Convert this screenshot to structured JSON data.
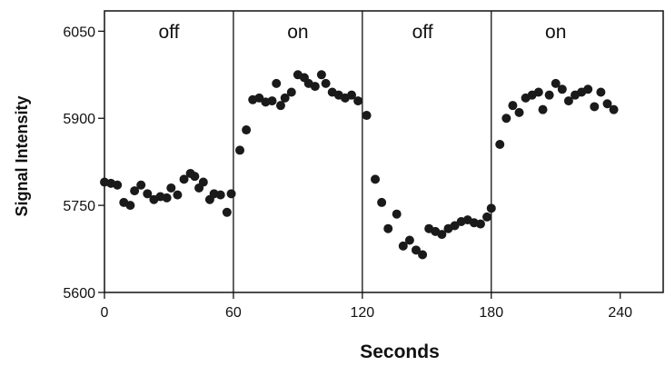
{
  "chart_data": {
    "type": "scatter",
    "xlabel": "Seconds",
    "ylabel": "Signal Intensity",
    "xlim": [
      0,
      260
    ],
    "ylim": [
      5600,
      6085
    ],
    "x_ticks": [
      0,
      60,
      120,
      180,
      240
    ],
    "y_ticks": [
      5600,
      5750,
      5900,
      6050
    ],
    "grid": false,
    "dividers": [
      60,
      120,
      180
    ],
    "phases": [
      {
        "label": "off",
        "x": 30
      },
      {
        "label": "on",
        "x": 90
      },
      {
        "label": "off",
        "x": 148
      },
      {
        "label": "on",
        "x": 210
      }
    ],
    "marker_color": "#1a1a1a",
    "series": [
      {
        "points": [
          [
            0,
            5790
          ],
          [
            3,
            5788
          ],
          [
            6,
            5785
          ],
          [
            9,
            5755
          ],
          [
            12,
            5750
          ],
          [
            14,
            5775
          ],
          [
            17,
            5785
          ],
          [
            20,
            5770
          ],
          [
            23,
            5760
          ],
          [
            26,
            5765
          ],
          [
            29,
            5763
          ],
          [
            31,
            5780
          ],
          [
            34,
            5768
          ],
          [
            37,
            5795
          ],
          [
            40,
            5805
          ],
          [
            42,
            5800
          ],
          [
            44,
            5780
          ],
          [
            46,
            5790
          ],
          [
            49,
            5760
          ],
          [
            51,
            5770
          ],
          [
            54,
            5768
          ],
          [
            57,
            5738
          ],
          [
            59,
            5770
          ],
          [
            63,
            5845
          ],
          [
            66,
            5880
          ],
          [
            69,
            5932
          ],
          [
            72,
            5935
          ],
          [
            75,
            5928
          ],
          [
            78,
            5930
          ],
          [
            80,
            5960
          ],
          [
            82,
            5922
          ],
          [
            84,
            5935
          ],
          [
            87,
            5945
          ],
          [
            90,
            5975
          ],
          [
            93,
            5970
          ],
          [
            95,
            5960
          ],
          [
            98,
            5955
          ],
          [
            101,
            5975
          ],
          [
            103,
            5960
          ],
          [
            106,
            5945
          ],
          [
            109,
            5940
          ],
          [
            112,
            5935
          ],
          [
            115,
            5940
          ],
          [
            118,
            5930
          ],
          [
            122,
            5905
          ],
          [
            126,
            5795
          ],
          [
            129,
            5755
          ],
          [
            132,
            5710
          ],
          [
            136,
            5735
          ],
          [
            139,
            5680
          ],
          [
            142,
            5690
          ],
          [
            145,
            5673
          ],
          [
            148,
            5665
          ],
          [
            151,
            5710
          ],
          [
            154,
            5705
          ],
          [
            157,
            5700
          ],
          [
            160,
            5710
          ],
          [
            163,
            5715
          ],
          [
            166,
            5722
          ],
          [
            169,
            5725
          ],
          [
            172,
            5720
          ],
          [
            175,
            5718
          ],
          [
            178,
            5730
          ],
          [
            180,
            5745
          ],
          [
            184,
            5855
          ],
          [
            187,
            5900
          ],
          [
            190,
            5922
          ],
          [
            193,
            5910
          ],
          [
            196,
            5935
          ],
          [
            199,
            5940
          ],
          [
            202,
            5945
          ],
          [
            204,
            5915
          ],
          [
            207,
            5940
          ],
          [
            210,
            5960
          ],
          [
            213,
            5950
          ],
          [
            216,
            5930
          ],
          [
            219,
            5940
          ],
          [
            222,
            5945
          ],
          [
            225,
            5950
          ],
          [
            228,
            5920
          ],
          [
            231,
            5945
          ],
          [
            234,
            5925
          ],
          [
            237,
            5915
          ]
        ]
      }
    ]
  }
}
